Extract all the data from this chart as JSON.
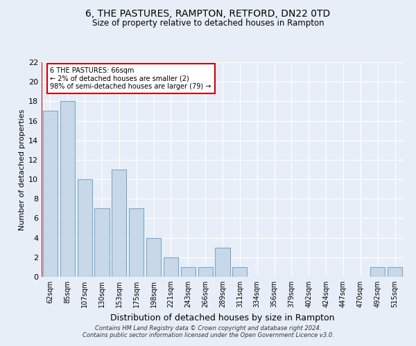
{
  "title": "6, THE PASTURES, RAMPTON, RETFORD, DN22 0TD",
  "subtitle": "Size of property relative to detached houses in Rampton",
  "xlabel": "Distribution of detached houses by size in Rampton",
  "ylabel": "Number of detached properties",
  "categories": [
    "62sqm",
    "85sqm",
    "107sqm",
    "130sqm",
    "153sqm",
    "175sqm",
    "198sqm",
    "221sqm",
    "243sqm",
    "266sqm",
    "289sqm",
    "311sqm",
    "334sqm",
    "356sqm",
    "379sqm",
    "402sqm",
    "424sqm",
    "447sqm",
    "470sqm",
    "492sqm",
    "515sqm"
  ],
  "values": [
    17,
    18,
    10,
    7,
    11,
    7,
    4,
    2,
    1,
    1,
    3,
    1,
    0,
    0,
    0,
    0,
    0,
    0,
    0,
    1,
    1
  ],
  "bar_color": "#c8d8e8",
  "bar_edge_color": "#7aa8c8",
  "highlight_line_color": "#cc0000",
  "ylim": [
    0,
    22
  ],
  "yticks": [
    0,
    2,
    4,
    6,
    8,
    10,
    12,
    14,
    16,
    18,
    20,
    22
  ],
  "annotation_text": "6 THE PASTURES: 66sqm\n← 2% of detached houses are smaller (2)\n98% of semi-detached houses are larger (79) →",
  "annotation_box_color": "#ffffff",
  "annotation_border_color": "#cc0000",
  "footer_line1": "Contains HM Land Registry data © Crown copyright and database right 2024.",
  "footer_line2": "Contains public sector information licensed under the Open Government Licence v3.0.",
  "background_color": "#e8eef8",
  "plot_bg_color": "#e8eef8",
  "grid_color": "#ffffff",
  "title_fontsize": 10,
  "subtitle_fontsize": 8.5,
  "axis_label_fontsize": 8,
  "tick_fontsize": 7,
  "footer_fontsize": 6
}
